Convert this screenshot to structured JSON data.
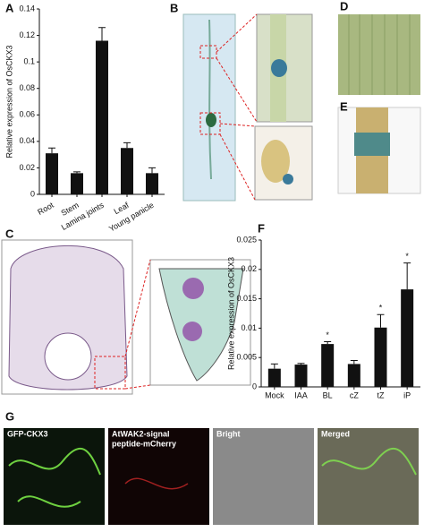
{
  "chart_data": [
    {
      "type": "bar",
      "ylabel": "Relative expression of OsCKX3",
      "categories": [
        "Root",
        "Stem",
        "Lamina joints",
        "Leaf",
        "Young panicle"
      ],
      "values": [
        0.031,
        0.016,
        0.116,
        0.035,
        0.016
      ],
      "errors": [
        0.004,
        0.001,
        0.01,
        0.004,
        0.004
      ],
      "color": "#111111",
      "ylim": [
        0,
        0.14
      ],
      "yticks": [
        0,
        0.02,
        0.04,
        0.06,
        0.08,
        0.1,
        0.12,
        0.14
      ]
    },
    {
      "type": "bar",
      "ylabel": "Relative expression of OsCKX3",
      "categories": [
        "Mock",
        "IAA",
        "BL",
        "cZ",
        "tZ",
        "iP"
      ],
      "values": [
        0.0031,
        0.0038,
        0.0073,
        0.0039,
        0.0101,
        0.0166
      ],
      "errors": [
        0.0008,
        0.0002,
        0.0004,
        0.0006,
        0.0022,
        0.0045
      ],
      "annotations": [
        null,
        null,
        "*",
        null,
        "*",
        "*"
      ],
      "color": "#111111",
      "ylim": [
        0,
        0.025
      ],
      "yticks": [
        0,
        0.005,
        0.01,
        0.015,
        0.02,
        0.025
      ]
    }
  ],
  "panels": [
    "A",
    "B",
    "C",
    "D",
    "E",
    "F",
    "G"
  ],
  "micrographs": [
    "GFP-CKX3",
    "AtWAK2-signal",
    "peptide-mCherry",
    "Bright",
    "Merged"
  ]
}
